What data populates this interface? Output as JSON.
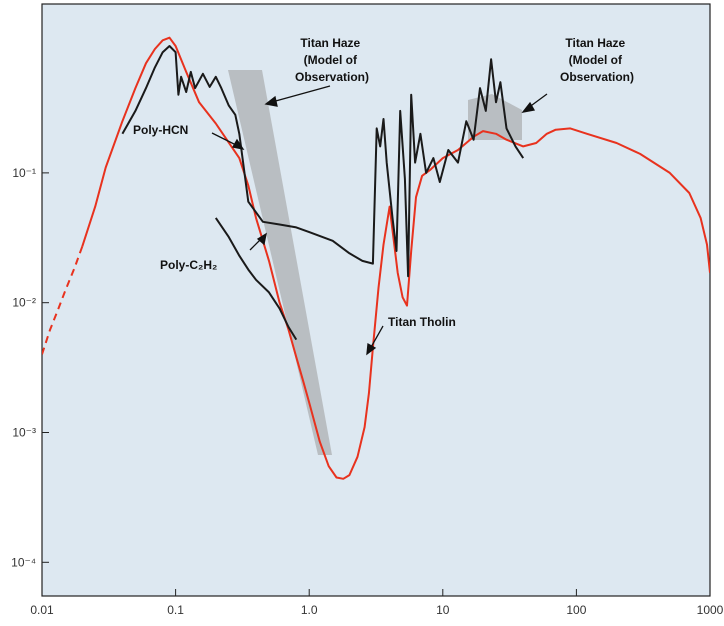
{
  "chart_data": {
    "type": "line",
    "x_scale": "log",
    "y_scale": "log",
    "xlim": [
      0.01,
      1000
    ],
    "ylim": [
      5.5e-05,
      2
    ],
    "grid": false,
    "legend": "none",
    "x_ticks": [
      {
        "value": 0.01,
        "label": "0.01"
      },
      {
        "value": 0.1,
        "label": "0.1"
      },
      {
        "value": 1,
        "label": "1.0"
      },
      {
        "value": 10,
        "label": "10"
      },
      {
        "value": 100,
        "label": "100"
      },
      {
        "value": 1000,
        "label": "1000"
      }
    ],
    "y_ticks": [
      {
        "value": 0.1,
        "label": "10⁻¹"
      },
      {
        "value": 0.01,
        "label": "10⁻²"
      },
      {
        "value": 0.001,
        "label": "10⁻³"
      },
      {
        "value": 0.0001,
        "label": "10⁻⁴"
      }
    ],
    "series": [
      {
        "key": "titan-tholin-dashed",
        "color": "#e8321e",
        "style": "dashed",
        "points": [
          [
            0.01,
            0.004
          ],
          [
            0.0115,
            0.0062
          ],
          [
            0.013,
            0.0085
          ],
          [
            0.015,
            0.0125
          ],
          [
            0.0175,
            0.0185
          ],
          [
            0.02,
            0.027
          ]
        ]
      },
      {
        "key": "titan-tholin",
        "color": "#e8321e",
        "style": "solid",
        "points": [
          [
            0.02,
            0.027
          ],
          [
            0.025,
            0.055
          ],
          [
            0.03,
            0.11
          ],
          [
            0.04,
            0.25
          ],
          [
            0.05,
            0.45
          ],
          [
            0.06,
            0.7
          ],
          [
            0.07,
            0.9
          ],
          [
            0.08,
            1.05
          ],
          [
            0.09,
            1.1
          ],
          [
            0.1,
            0.95
          ],
          [
            0.12,
            0.6
          ],
          [
            0.15,
            0.35
          ],
          [
            0.2,
            0.24
          ],
          [
            0.3,
            0.13
          ],
          [
            0.35,
            0.08
          ],
          [
            0.4,
            0.045
          ],
          [
            0.5,
            0.021
          ],
          [
            0.6,
            0.01
          ],
          [
            0.7,
            0.0062
          ],
          [
            0.8,
            0.0038
          ],
          [
            0.9,
            0.0025
          ],
          [
            1.0,
            0.0017
          ],
          [
            1.2,
            0.00085
          ],
          [
            1.4,
            0.00055
          ],
          [
            1.6,
            0.00045
          ],
          [
            1.8,
            0.00044
          ],
          [
            2.0,
            0.00047
          ],
          [
            2.3,
            0.00065
          ],
          [
            2.6,
            0.0011
          ],
          [
            2.8,
            0.002
          ],
          [
            3.0,
            0.0045
          ],
          [
            3.3,
            0.013
          ],
          [
            3.6,
            0.028
          ],
          [
            4.0,
            0.055
          ],
          [
            4.3,
            0.03
          ],
          [
            4.6,
            0.017
          ],
          [
            5.0,
            0.011
          ],
          [
            5.4,
            0.0095
          ],
          [
            5.8,
            0.025
          ],
          [
            6.3,
            0.065
          ],
          [
            7,
            0.095
          ],
          [
            8,
            0.105
          ],
          [
            10,
            0.13
          ],
          [
            13,
            0.15
          ],
          [
            17,
            0.19
          ],
          [
            20,
            0.21
          ],
          [
            25,
            0.2
          ],
          [
            30,
            0.18
          ],
          [
            40,
            0.16
          ],
          [
            50,
            0.17
          ],
          [
            60,
            0.2
          ],
          [
            70,
            0.215
          ],
          [
            90,
            0.22
          ],
          [
            120,
            0.2
          ],
          [
            200,
            0.17
          ],
          [
            300,
            0.14
          ],
          [
            500,
            0.1
          ],
          [
            700,
            0.07
          ],
          [
            850,
            0.045
          ],
          [
            950,
            0.028
          ],
          [
            1000,
            0.017
          ]
        ]
      },
      {
        "key": "poly-hcn",
        "color": "#1a1a1a",
        "style": "solid",
        "points": [
          [
            0.04,
            0.2
          ],
          [
            0.05,
            0.3
          ],
          [
            0.06,
            0.45
          ],
          [
            0.07,
            0.65
          ],
          [
            0.08,
            0.85
          ],
          [
            0.09,
            0.95
          ],
          [
            0.1,
            0.85
          ],
          [
            0.105,
            0.4
          ],
          [
            0.11,
            0.55
          ],
          [
            0.12,
            0.42
          ],
          [
            0.13,
            0.6
          ],
          [
            0.14,
            0.45
          ],
          [
            0.16,
            0.58
          ],
          [
            0.18,
            0.46
          ],
          [
            0.2,
            0.55
          ],
          [
            0.22,
            0.45
          ],
          [
            0.25,
            0.33
          ],
          [
            0.28,
            0.28
          ],
          [
            0.3,
            0.2
          ],
          [
            0.35,
            0.06
          ],
          [
            0.45,
            0.042
          ],
          [
            0.6,
            0.04
          ],
          [
            0.8,
            0.038
          ],
          [
            1.0,
            0.035
          ],
          [
            1.5,
            0.03
          ],
          [
            2,
            0.024
          ],
          [
            2.5,
            0.021
          ],
          [
            3,
            0.02
          ],
          [
            3.2,
            0.22
          ],
          [
            3.4,
            0.16
          ],
          [
            3.6,
            0.26
          ],
          [
            3.8,
            0.12
          ],
          [
            4.2,
            0.045
          ],
          [
            4.5,
            0.025
          ],
          [
            4.8,
            0.3
          ],
          [
            5.2,
            0.09
          ],
          [
            5.5,
            0.016
          ],
          [
            5.8,
            0.4
          ],
          [
            6.2,
            0.12
          ],
          [
            6.8,
            0.2
          ],
          [
            7.5,
            0.1
          ],
          [
            8.5,
            0.13
          ],
          [
            9.5,
            0.085
          ],
          [
            11,
            0.15
          ],
          [
            13,
            0.12
          ],
          [
            15,
            0.25
          ],
          [
            17,
            0.18
          ],
          [
            19,
            0.45
          ],
          [
            21,
            0.3
          ],
          [
            23,
            0.75
          ],
          [
            25,
            0.35
          ],
          [
            27,
            0.5
          ],
          [
            30,
            0.22
          ],
          [
            35,
            0.16
          ],
          [
            40,
            0.13
          ]
        ]
      },
      {
        "key": "poly-c2h2",
        "color": "#1a1a1a",
        "style": "solid",
        "points": [
          [
            0.2,
            0.045
          ],
          [
            0.25,
            0.032
          ],
          [
            0.3,
            0.023
          ],
          [
            0.35,
            0.018
          ],
          [
            0.4,
            0.015
          ],
          [
            0.5,
            0.012
          ],
          [
            0.6,
            0.009
          ],
          [
            0.7,
            0.0065
          ],
          [
            0.8,
            0.0052
          ]
        ]
      }
    ],
    "annotations": [
      {
        "lines": [
          "Titan Haze",
          "(Model of",
          "Observation)"
        ]
      },
      {
        "lines": [
          "Titan Haze",
          "(Model of",
          "Observation)"
        ]
      },
      {
        "lines": [
          "Poly-HCN"
        ]
      },
      {
        "lines": [
          "Poly-C₂H₂"
        ]
      },
      {
        "lines": [
          "Titan Tholin"
        ]
      }
    ]
  }
}
